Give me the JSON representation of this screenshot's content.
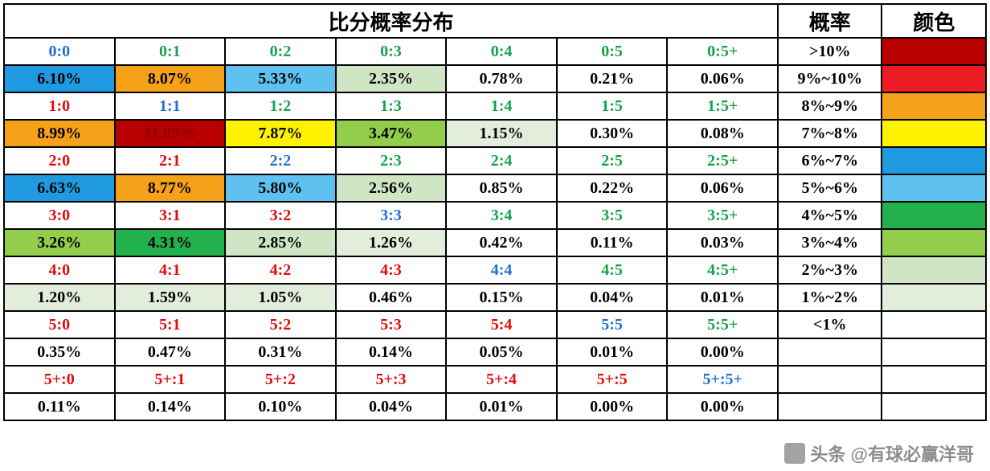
{
  "header": {
    "main_title": "比分概率分布",
    "prob_label": "概率",
    "color_label": "颜色",
    "title_fontsize": 26,
    "title_color": "#000000"
  },
  "text_colors": {
    "blue": "#1f6fd4",
    "green": "#14a24a",
    "red": "#e40a0a",
    "black": "#000000",
    "darkred": "#8b0000"
  },
  "bg_colors": {
    "white": "#ffffff",
    "deepred": "#b90000",
    "red": "#ec1c24",
    "orange": "#f5a11a",
    "yellow": "#fef200",
    "blue": "#1f9ae0",
    "skyblue": "#5ec1ef",
    "green": "#22b14c",
    "lime": "#92cd4b",
    "pale1": "#cfe5c4",
    "pale2": "#e2eedb",
    "pale3": "#eef4ea"
  },
  "grid": {
    "col_width_main": 136,
    "col_width_prob": 128,
    "col_width_color": 128,
    "rows": [
      [
        {
          "t": "0:0",
          "fg": "blue",
          "bg": "white"
        },
        {
          "t": "0:1",
          "fg": "green",
          "bg": "white"
        },
        {
          "t": "0:2",
          "fg": "green",
          "bg": "white"
        },
        {
          "t": "0:3",
          "fg": "green",
          "bg": "white"
        },
        {
          "t": "0:4",
          "fg": "green",
          "bg": "white"
        },
        {
          "t": "0:5",
          "fg": "green",
          "bg": "white"
        },
        {
          "t": "0:5+",
          "fg": "green",
          "bg": "white"
        }
      ],
      [
        {
          "t": "6.10%",
          "fg": "black",
          "bg": "blue"
        },
        {
          "t": "8.07%",
          "fg": "black",
          "bg": "orange"
        },
        {
          "t": "5.33%",
          "fg": "black",
          "bg": "skyblue"
        },
        {
          "t": "2.35%",
          "fg": "black",
          "bg": "pale1"
        },
        {
          "t": "0.78%",
          "fg": "black",
          "bg": "white"
        },
        {
          "t": "0.21%",
          "fg": "black",
          "bg": "white"
        },
        {
          "t": "0.06%",
          "fg": "black",
          "bg": "white"
        }
      ],
      [
        {
          "t": "1:0",
          "fg": "red",
          "bg": "white"
        },
        {
          "t": "1:1",
          "fg": "blue",
          "bg": "white"
        },
        {
          "t": "1:2",
          "fg": "green",
          "bg": "white"
        },
        {
          "t": "1:3",
          "fg": "green",
          "bg": "white"
        },
        {
          "t": "1:4",
          "fg": "green",
          "bg": "white"
        },
        {
          "t": "1:5",
          "fg": "green",
          "bg": "white"
        },
        {
          "t": "1:5+",
          "fg": "green",
          "bg": "white"
        }
      ],
      [
        {
          "t": "8.99%",
          "fg": "black",
          "bg": "orange"
        },
        {
          "t": "11.89%",
          "fg": "darkred",
          "bg": "deepred"
        },
        {
          "t": "7.87%",
          "fg": "black",
          "bg": "yellow"
        },
        {
          "t": "3.47%",
          "fg": "black",
          "bg": "lime"
        },
        {
          "t": "1.15%",
          "fg": "black",
          "bg": "pale2"
        },
        {
          "t": "0.30%",
          "fg": "black",
          "bg": "white"
        },
        {
          "t": "0.08%",
          "fg": "black",
          "bg": "white"
        }
      ],
      [
        {
          "t": "2:0",
          "fg": "red",
          "bg": "white"
        },
        {
          "t": "2:1",
          "fg": "red",
          "bg": "white"
        },
        {
          "t": "2:2",
          "fg": "blue",
          "bg": "white"
        },
        {
          "t": "2:3",
          "fg": "green",
          "bg": "white"
        },
        {
          "t": "2:4",
          "fg": "green",
          "bg": "white"
        },
        {
          "t": "2:5",
          "fg": "green",
          "bg": "white"
        },
        {
          "t": "2:5+",
          "fg": "green",
          "bg": "white"
        }
      ],
      [
        {
          "t": "6.63%",
          "fg": "black",
          "bg": "blue"
        },
        {
          "t": "8.77%",
          "fg": "black",
          "bg": "orange"
        },
        {
          "t": "5.80%",
          "fg": "black",
          "bg": "skyblue"
        },
        {
          "t": "2.56%",
          "fg": "black",
          "bg": "pale1"
        },
        {
          "t": "0.85%",
          "fg": "black",
          "bg": "white"
        },
        {
          "t": "0.22%",
          "fg": "black",
          "bg": "white"
        },
        {
          "t": "0.06%",
          "fg": "black",
          "bg": "white"
        }
      ],
      [
        {
          "t": "3:0",
          "fg": "red",
          "bg": "white"
        },
        {
          "t": "3:1",
          "fg": "red",
          "bg": "white"
        },
        {
          "t": "3:2",
          "fg": "red",
          "bg": "white"
        },
        {
          "t": "3:3",
          "fg": "blue",
          "bg": "white"
        },
        {
          "t": "3:4",
          "fg": "green",
          "bg": "white"
        },
        {
          "t": "3:5",
          "fg": "green",
          "bg": "white"
        },
        {
          "t": "3:5+",
          "fg": "green",
          "bg": "white"
        }
      ],
      [
        {
          "t": "3.26%",
          "fg": "black",
          "bg": "lime"
        },
        {
          "t": "4.31%",
          "fg": "black",
          "bg": "green"
        },
        {
          "t": "2.85%",
          "fg": "black",
          "bg": "pale1"
        },
        {
          "t": "1.26%",
          "fg": "black",
          "bg": "pale2"
        },
        {
          "t": "0.42%",
          "fg": "black",
          "bg": "white"
        },
        {
          "t": "0.11%",
          "fg": "black",
          "bg": "white"
        },
        {
          "t": "0.03%",
          "fg": "black",
          "bg": "white"
        }
      ],
      [
        {
          "t": "4:0",
          "fg": "red",
          "bg": "white"
        },
        {
          "t": "4:1",
          "fg": "red",
          "bg": "white"
        },
        {
          "t": "4:2",
          "fg": "red",
          "bg": "white"
        },
        {
          "t": "4:3",
          "fg": "red",
          "bg": "white"
        },
        {
          "t": "4:4",
          "fg": "blue",
          "bg": "white"
        },
        {
          "t": "4:5",
          "fg": "green",
          "bg": "white"
        },
        {
          "t": "4:5+",
          "fg": "green",
          "bg": "white"
        }
      ],
      [
        {
          "t": "1.20%",
          "fg": "black",
          "bg": "pale2"
        },
        {
          "t": "1.59%",
          "fg": "black",
          "bg": "pale2"
        },
        {
          "t": "1.05%",
          "fg": "black",
          "bg": "pale2"
        },
        {
          "t": "0.46%",
          "fg": "black",
          "bg": "white"
        },
        {
          "t": "0.15%",
          "fg": "black",
          "bg": "white"
        },
        {
          "t": "0.04%",
          "fg": "black",
          "bg": "white"
        },
        {
          "t": "0.01%",
          "fg": "black",
          "bg": "white"
        }
      ],
      [
        {
          "t": "5:0",
          "fg": "red",
          "bg": "white"
        },
        {
          "t": "5:1",
          "fg": "red",
          "bg": "white"
        },
        {
          "t": "5:2",
          "fg": "red",
          "bg": "white"
        },
        {
          "t": "5:3",
          "fg": "red",
          "bg": "white"
        },
        {
          "t": "5:4",
          "fg": "red",
          "bg": "white"
        },
        {
          "t": "5:5",
          "fg": "blue",
          "bg": "white"
        },
        {
          "t": "5:5+",
          "fg": "green",
          "bg": "white"
        }
      ],
      [
        {
          "t": "0.35%",
          "fg": "black",
          "bg": "white"
        },
        {
          "t": "0.47%",
          "fg": "black",
          "bg": "white"
        },
        {
          "t": "0.31%",
          "fg": "black",
          "bg": "white"
        },
        {
          "t": "0.14%",
          "fg": "black",
          "bg": "white"
        },
        {
          "t": "0.05%",
          "fg": "black",
          "bg": "white"
        },
        {
          "t": "0.01%",
          "fg": "black",
          "bg": "white"
        },
        {
          "t": "0.00%",
          "fg": "black",
          "bg": "white"
        }
      ],
      [
        {
          "t": "5+:0",
          "fg": "red",
          "bg": "white"
        },
        {
          "t": "5+:1",
          "fg": "red",
          "bg": "white"
        },
        {
          "t": "5+:2",
          "fg": "red",
          "bg": "white"
        },
        {
          "t": "5+:3",
          "fg": "red",
          "bg": "white"
        },
        {
          "t": "5+:4",
          "fg": "red",
          "bg": "white"
        },
        {
          "t": "5+:5",
          "fg": "red",
          "bg": "white"
        },
        {
          "t": "5+:5+",
          "fg": "blue",
          "bg": "white"
        }
      ],
      [
        {
          "t": "0.11%",
          "fg": "black",
          "bg": "white"
        },
        {
          "t": "0.14%",
          "fg": "black",
          "bg": "white"
        },
        {
          "t": "0.10%",
          "fg": "black",
          "bg": "white"
        },
        {
          "t": "0.04%",
          "fg": "black",
          "bg": "white"
        },
        {
          "t": "0.01%",
          "fg": "black",
          "bg": "white"
        },
        {
          "t": "0.00%",
          "fg": "black",
          "bg": "white"
        },
        {
          "t": "0.00%",
          "fg": "black",
          "bg": "white"
        }
      ]
    ]
  },
  "legend": [
    {
      "label": ">10%",
      "swatch": "deepred"
    },
    {
      "label": "9%~10%",
      "swatch": "red"
    },
    {
      "label": "8%~9%",
      "swatch": "orange"
    },
    {
      "label": "7%~8%",
      "swatch": "yellow"
    },
    {
      "label": "6%~7%",
      "swatch": "blue"
    },
    {
      "label": "5%~6%",
      "swatch": "skyblue"
    },
    {
      "label": "4%~5%",
      "swatch": "green"
    },
    {
      "label": "3%~4%",
      "swatch": "lime"
    },
    {
      "label": "2%~3%",
      "swatch": "pale1"
    },
    {
      "label": "1%~2%",
      "swatch": "pale2"
    },
    {
      "label": "<1%",
      "swatch": "white"
    },
    {
      "label": "",
      "swatch": "white"
    },
    {
      "label": "",
      "swatch": "white"
    },
    {
      "label": "",
      "swatch": "white"
    }
  ],
  "watermark": "头条 @有球必赢洋哥"
}
